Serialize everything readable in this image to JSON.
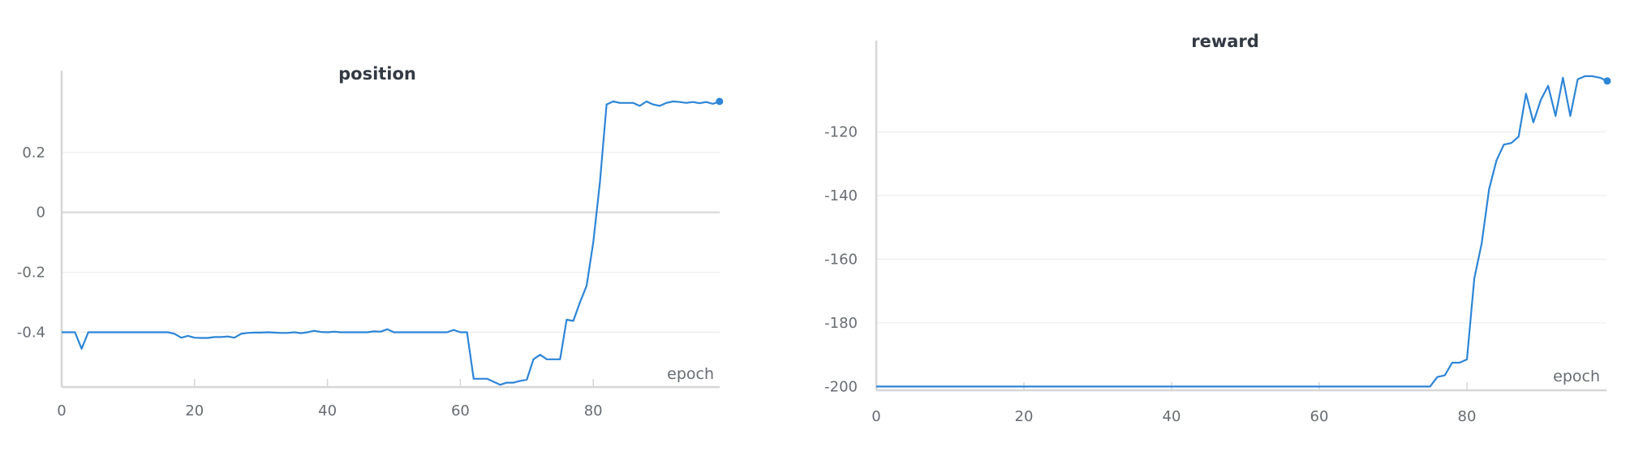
{
  "chart_data": [
    {
      "type": "line",
      "title": "position",
      "xlabel": "epoch",
      "ylabel": "",
      "xlim": [
        0,
        99
      ],
      "ylim": [
        -0.575,
        0.37
      ],
      "xticks": [
        "0",
        "20",
        "40",
        "60",
        "80"
      ],
      "yticks": [
        "0.2",
        "0",
        "-0.2",
        "-0.4"
      ],
      "color": "#2d85d7",
      "series": [
        {
          "name": "position",
          "x": [
            0,
            1,
            2,
            3,
            4,
            5,
            6,
            7,
            8,
            9,
            10,
            11,
            12,
            13,
            14,
            15,
            16,
            17,
            18,
            19,
            20,
            21,
            22,
            23,
            24,
            25,
            26,
            27,
            28,
            29,
            30,
            31,
            32,
            33,
            34,
            35,
            36,
            37,
            38,
            39,
            40,
            41,
            42,
            43,
            44,
            45,
            46,
            47,
            48,
            49,
            50,
            51,
            52,
            53,
            54,
            55,
            56,
            57,
            58,
            59,
            60,
            61,
            62,
            63,
            64,
            65,
            66,
            67,
            68,
            69,
            70,
            71,
            72,
            73,
            74,
            75,
            76,
            77,
            78,
            79,
            80,
            81,
            82,
            83,
            84,
            85,
            86,
            87,
            88,
            89,
            90,
            91,
            92,
            93,
            94,
            95,
            96,
            97,
            98,
            99
          ],
          "values": [
            -0.4,
            -0.4,
            -0.4,
            -0.455,
            -0.4,
            -0.4,
            -0.4,
            -0.4,
            -0.4,
            -0.4,
            -0.4,
            -0.4,
            -0.4,
            -0.4,
            -0.4,
            -0.4,
            -0.4,
            -0.405,
            -0.418,
            -0.412,
            -0.418,
            -0.419,
            -0.419,
            -0.416,
            -0.416,
            -0.414,
            -0.418,
            -0.405,
            -0.402,
            -0.401,
            -0.401,
            -0.4,
            -0.401,
            -0.402,
            -0.402,
            -0.4,
            -0.403,
            -0.4,
            -0.395,
            -0.399,
            -0.4,
            -0.398,
            -0.4,
            -0.4,
            -0.4,
            -0.4,
            -0.4,
            -0.397,
            -0.398,
            -0.39,
            -0.4,
            -0.4,
            -0.4,
            -0.4,
            -0.4,
            -0.4,
            -0.4,
            -0.4,
            -0.4,
            -0.392,
            -0.4,
            -0.4,
            -0.555,
            -0.555,
            -0.555,
            -0.565,
            -0.575,
            -0.568,
            -0.568,
            -0.562,
            -0.558,
            -0.49,
            -0.475,
            -0.49,
            -0.49,
            -0.49,
            -0.358,
            -0.362,
            -0.3,
            -0.245,
            -0.1,
            0.1,
            0.36,
            0.37,
            0.365,
            0.365,
            0.365,
            0.355,
            0.37,
            0.36,
            0.355,
            0.365,
            0.37,
            0.368,
            0.365,
            0.368,
            0.364,
            0.368,
            0.362,
            0.37
          ]
        }
      ]
    },
    {
      "type": "line",
      "title": "reward",
      "xlabel": "epoch",
      "ylabel": "",
      "xlim": [
        0,
        99
      ],
      "ylim": [
        -200,
        -101
      ],
      "xticks": [
        "0",
        "20",
        "40",
        "60",
        "80"
      ],
      "yticks": [
        "-120",
        "-140",
        "-160",
        "-180",
        "-200"
      ],
      "color": "#2d85d7",
      "series": [
        {
          "name": "reward",
          "x": [
            0,
            1,
            2,
            3,
            4,
            5,
            6,
            7,
            8,
            9,
            10,
            11,
            12,
            13,
            14,
            15,
            16,
            17,
            18,
            19,
            20,
            21,
            22,
            23,
            24,
            25,
            26,
            27,
            28,
            29,
            30,
            31,
            32,
            33,
            34,
            35,
            36,
            37,
            38,
            39,
            40,
            41,
            42,
            43,
            44,
            45,
            46,
            47,
            48,
            49,
            50,
            51,
            52,
            53,
            54,
            55,
            56,
            57,
            58,
            59,
            60,
            61,
            62,
            63,
            64,
            65,
            66,
            67,
            68,
            69,
            70,
            71,
            72,
            73,
            74,
            75,
            76,
            77,
            78,
            79,
            80,
            81,
            82,
            83,
            84,
            85,
            86,
            87,
            88,
            89,
            90,
            91,
            92,
            93,
            94,
            95,
            96,
            97,
            98,
            99
          ],
          "values": [
            -200,
            -200,
            -200,
            -200,
            -200,
            -200,
            -200,
            -200,
            -200,
            -200,
            -200,
            -200,
            -200,
            -200,
            -200,
            -200,
            -200,
            -200,
            -200,
            -200,
            -200,
            -200,
            -200,
            -200,
            -200,
            -200,
            -200,
            -200,
            -200,
            -200,
            -200,
            -200,
            -200,
            -200,
            -200,
            -200,
            -200,
            -200,
            -200,
            -200,
            -200,
            -200,
            -200,
            -200,
            -200,
            -200,
            -200,
            -200,
            -200,
            -200,
            -200,
            -200,
            -200,
            -200,
            -200,
            -200,
            -200,
            -200,
            -200,
            -200,
            -200,
            -200,
            -200,
            -200,
            -200,
            -200,
            -200,
            -200,
            -200,
            -200,
            -200,
            -200,
            -200,
            -200,
            -200,
            -200,
            -197,
            -196.5,
            -192.5,
            -192.5,
            -191.5,
            -166,
            -155,
            -138,
            -129,
            -124,
            -123.5,
            -121.5,
            -108,
            -117,
            -110,
            -105.5,
            -115,
            -103,
            -115,
            -103.5,
            -102.5,
            -102.5,
            -103,
            -104
          ]
        }
      ]
    }
  ]
}
